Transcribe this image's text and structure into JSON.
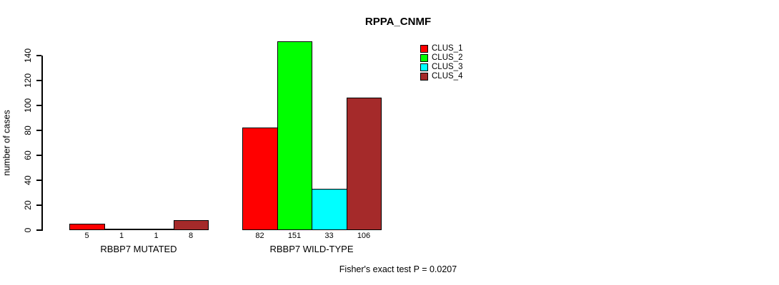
{
  "chart_data": {
    "type": "bar",
    "title": "RPPA_CNMF",
    "ylabel": "number of cases",
    "xlabel": "",
    "ylim": [
      0,
      151
    ],
    "yticks": [
      0,
      20,
      40,
      60,
      80,
      100,
      120,
      140
    ],
    "grid": false,
    "legend_position": "top-right",
    "categories": [
      "RBBP7 MUTATED",
      "RBBP7 WILD-TYPE"
    ],
    "series": [
      {
        "name": "CLUS_1",
        "color": "#ff0000",
        "values": [
          5,
          82
        ]
      },
      {
        "name": "CLUS_2",
        "color": "#00ff00",
        "values": [
          1,
          151
        ]
      },
      {
        "name": "CLUS_3",
        "color": "#00ffff",
        "values": [
          1,
          33
        ]
      },
      {
        "name": "CLUS_4",
        "color": "#a52a2a",
        "values": [
          8,
          106
        ]
      }
    ],
    "groups": [
      {
        "label": "RBBP7 MUTATED",
        "values": [
          5,
          1,
          1,
          8
        ]
      },
      {
        "label": "RBBP7 WILD-TYPE",
        "values": [
          82,
          151,
          33,
          106
        ]
      }
    ],
    "bar_value_labels": [
      [
        5,
        1,
        1,
        8
      ],
      [
        82,
        151,
        33,
        106
      ]
    ],
    "legend": [
      {
        "label": "CLUS_1",
        "color": "#ff0000"
      },
      {
        "label": "CLUS_2",
        "color": "#00ff00"
      },
      {
        "label": "CLUS_3",
        "color": "#00ffff"
      },
      {
        "label": "CLUS_4",
        "color": "#a52a2a"
      }
    ],
    "footnote": "Fisher's exact test P = 0.0207",
    "axis_color": "#000000",
    "background_color": "#ffffff"
  }
}
